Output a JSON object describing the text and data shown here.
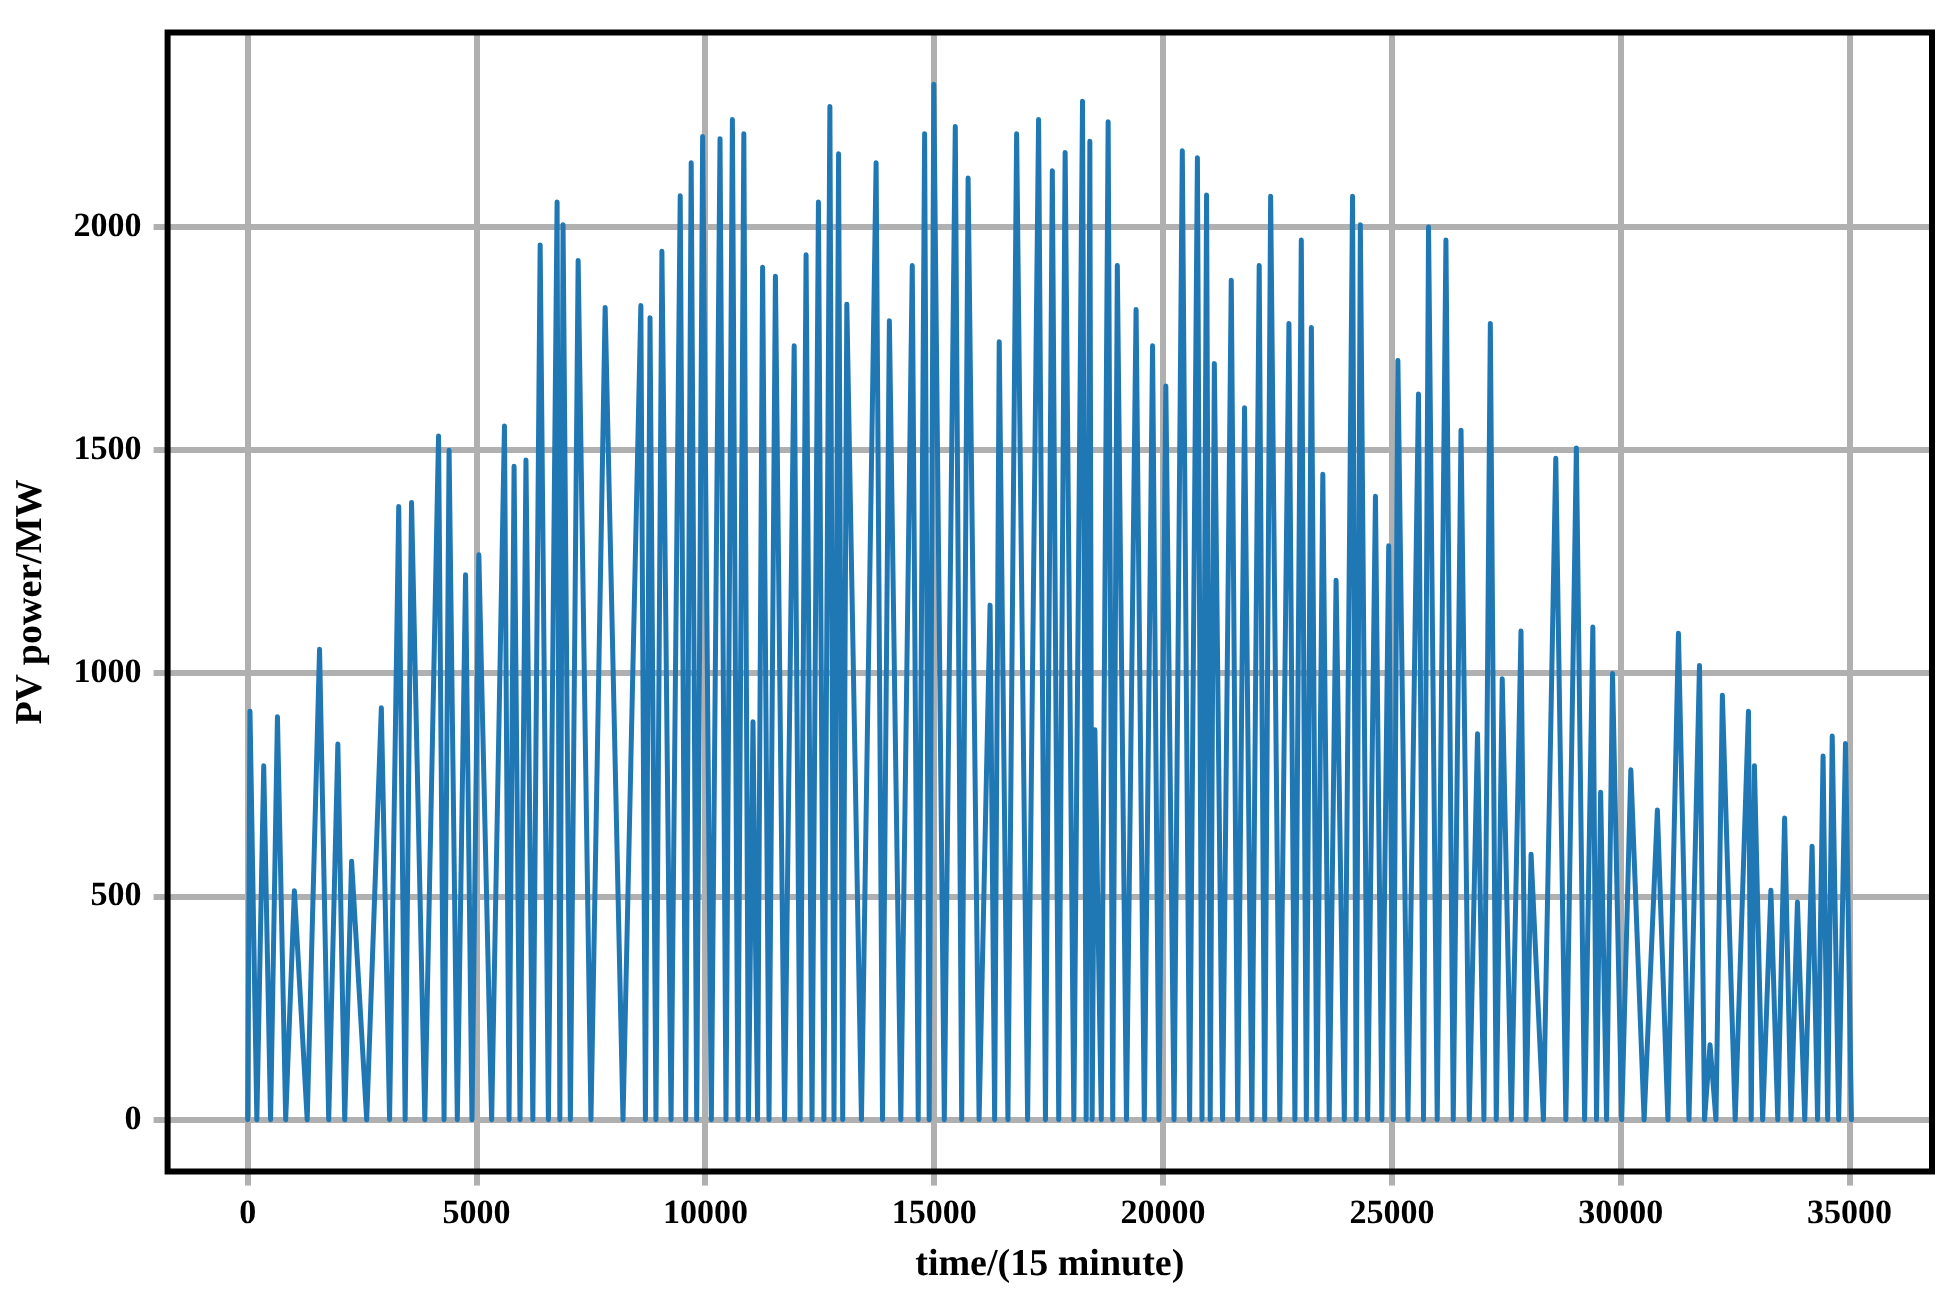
{
  "chart_data": {
    "type": "line",
    "xlabel": "time/(15 minute)",
    "ylabel": "PV power/MW",
    "xlim": [
      -1750,
      36800
    ],
    "ylim": [
      -116,
      2436
    ],
    "xticks": [
      0,
      5000,
      10000,
      15000,
      20000,
      25000,
      30000,
      35000
    ],
    "yticks": [
      0,
      500,
      1000,
      1500,
      2000
    ],
    "grid": true,
    "legend": false,
    "marker": "none",
    "line_style": "solid",
    "series": [
      {
        "color": "#1f77b4",
        "x": [
          0,
          50,
          200,
          350,
          500,
          650,
          830,
          1020,
          1300,
          1570,
          1770,
          1970,
          2120,
          2270,
          2600,
          2920,
          3100,
          3300,
          3440,
          3580,
          3870,
          4170,
          4290,
          4400,
          4580,
          4760,
          4900,
          5050,
          5330,
          5610,
          5710,
          5820,
          5950,
          6080,
          6230,
          6390,
          6570,
          6760,
          6820,
          6890,
          7050,
          7220,
          7500,
          7810,
          8200,
          8590,
          8690,
          8790,
          8920,
          9050,
          9250,
          9450,
          9570,
          9690,
          9810,
          9940,
          10130,
          10320,
          10450,
          10590,
          10710,
          10840,
          10940,
          11040,
          11140,
          11250,
          11390,
          11530,
          11730,
          11940,
          12070,
          12200,
          12330,
          12470,
          12590,
          12720,
          12810,
          12910,
          13000,
          13090,
          13410,
          13730,
          13870,
          14020,
          14270,
          14520,
          14650,
          14790,
          14890,
          14990,
          15220,
          15460,
          15600,
          15740,
          15980,
          16220,
          16320,
          16420,
          16610,
          16800,
          17040,
          17280,
          17430,
          17580,
          17720,
          17860,
          18050,
          18240,
          18320,
          18400,
          18450,
          18510,
          18650,
          18800,
          18900,
          19000,
          19200,
          19410,
          19590,
          19770,
          19910,
          20060,
          20240,
          20420,
          20580,
          20750,
          20850,
          20950,
          21030,
          21120,
          21300,
          21490,
          21630,
          21780,
          21940,
          22100,
          22220,
          22350,
          22550,
          22750,
          22880,
          23020,
          23130,
          23240,
          23360,
          23490,
          23630,
          23780,
          23960,
          24140,
          24220,
          24310,
          24470,
          24640,
          24780,
          24930,
          25030,
          25130,
          25350,
          25580,
          25690,
          25800,
          25990,
          26180,
          26340,
          26510,
          26690,
          26870,
          27010,
          27150,
          27280,
          27410,
          27610,
          27820,
          27930,
          28040,
          28310,
          28580,
          28800,
          29030,
          29210,
          29390,
          29470,
          29560,
          29690,
          29820,
          30020,
          30220,
          30510,
          30800,
          31030,
          31260,
          31490,
          31720,
          31830,
          31950,
          32080,
          32220,
          32500,
          32790,
          32850,
          32920,
          33100,
          33280,
          33430,
          33580,
          33720,
          33860,
          34020,
          34180,
          34300,
          34420,
          34520,
          34620,
          34760,
          34910,
          35040
        ],
        "values": [
          0,
          915,
          0,
          793,
          0,
          903,
          0,
          513,
          0,
          1054,
          0,
          842,
          0,
          579,
          0,
          923,
          0,
          1374,
          0,
          1383,
          0,
          1532,
          0,
          1500,
          0,
          1221,
          0,
          1266,
          0,
          1554,
          0,
          1464,
          0,
          1478,
          0,
          1960,
          0,
          2056,
          0,
          2005,
          0,
          1925,
          0,
          1820,
          0,
          1824,
          0,
          1797,
          0,
          1946,
          0,
          2070,
          0,
          2144,
          0,
          2203,
          0,
          2198,
          0,
          2241,
          0,
          2209,
          0,
          892,
          0,
          1910,
          0,
          1890,
          0,
          1734,
          0,
          1938,
          0,
          2056,
          0,
          2270,
          0,
          2164,
          0,
          1827,
          0,
          2144,
          0,
          1790,
          0,
          1914,
          0,
          2209,
          0,
          2320,
          0,
          2225,
          0,
          2110,
          0,
          1153,
          0,
          1743,
          0,
          2209,
          0,
          2241,
          0,
          2126,
          0,
          2167,
          0,
          2282,
          0,
          2192,
          0,
          874,
          0,
          2236,
          0,
          1914,
          0,
          1815,
          0,
          1734,
          0,
          1644,
          0,
          2171,
          0,
          2155,
          0,
          2072,
          0,
          1694,
          0,
          1881,
          0,
          1595,
          0,
          1914,
          0,
          2069,
          0,
          1784,
          0,
          1971,
          0,
          1775,
          0,
          1446,
          0,
          1209,
          0,
          2069,
          0,
          2005,
          0,
          1397,
          0,
          1286,
          0,
          1701,
          0,
          1626,
          0,
          2000,
          0,
          1971,
          0,
          1545,
          0,
          865,
          0,
          1784,
          0,
          988,
          0,
          1095,
          0,
          595,
          0,
          1482,
          0,
          1505,
          0,
          1104,
          0,
          734,
          0,
          1000,
          0,
          784,
          0,
          694,
          0,
          1090,
          0,
          1018,
          0,
          168,
          0,
          951,
          0,
          915,
          0,
          793,
          0,
          514,
          0,
          676,
          0,
          488,
          0,
          613,
          0,
          815,
          0,
          860,
          0,
          843,
          0
        ]
      }
    ]
  }
}
